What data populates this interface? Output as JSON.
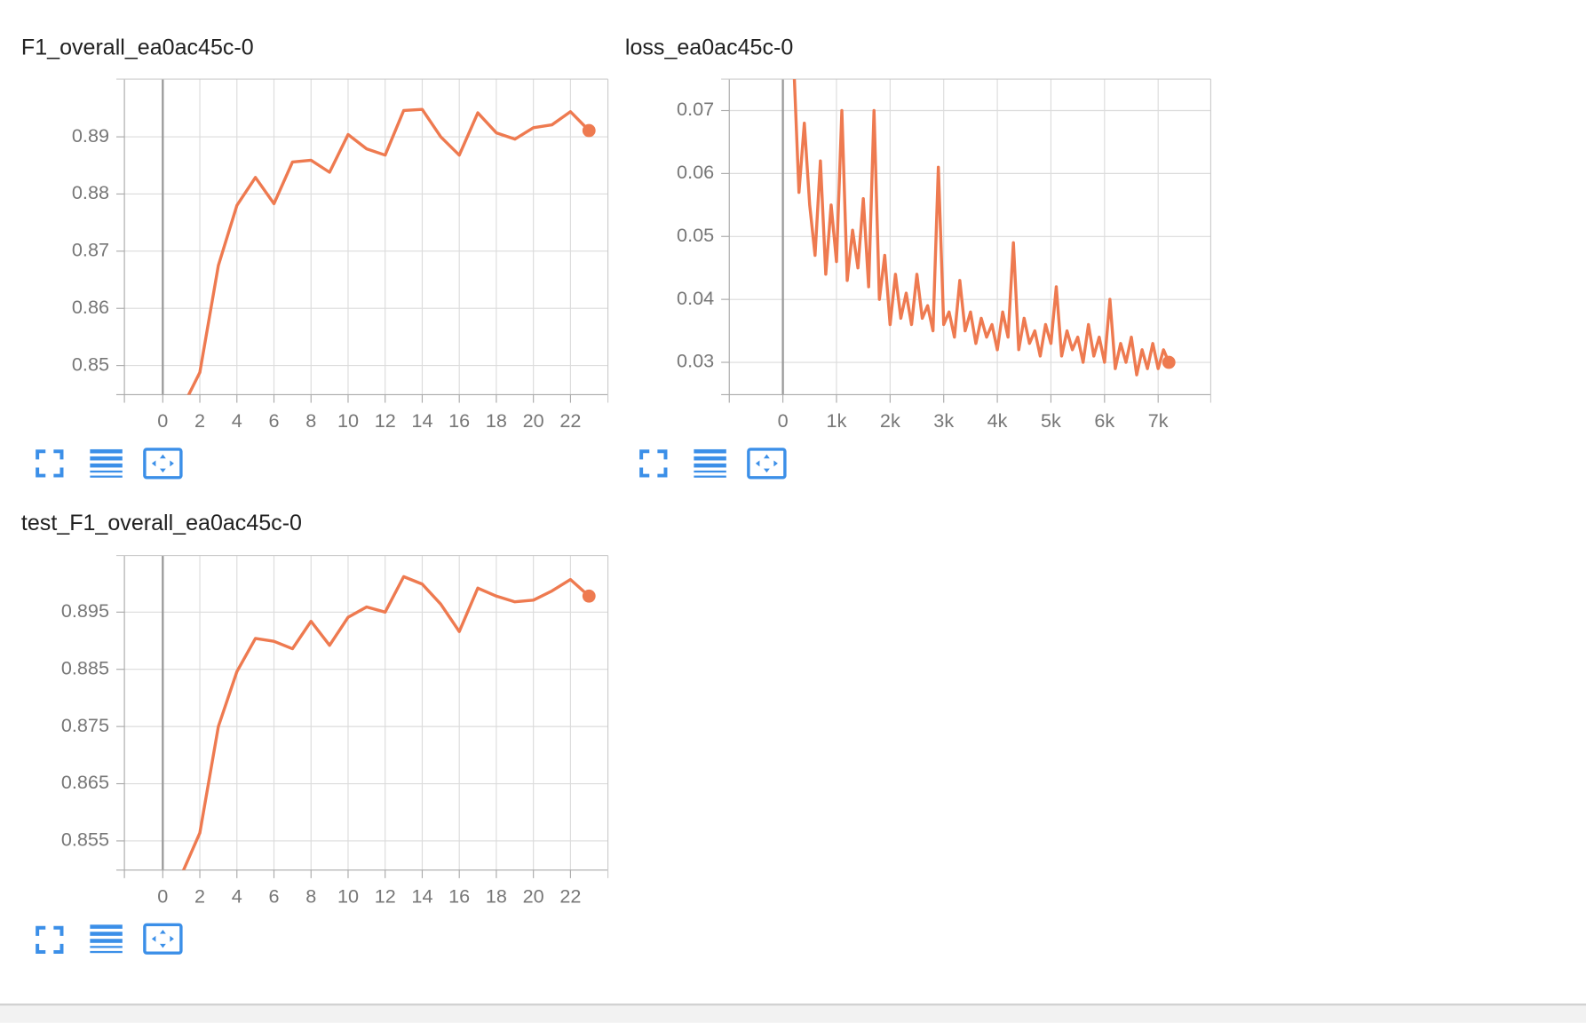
{
  "chart_data": [
    {
      "type": "line",
      "title": "F1_overall_ea0ac45c-0",
      "color": "#ee7a50",
      "grid": true,
      "x": [
        1,
        2,
        3,
        4,
        5,
        6,
        7,
        8,
        9,
        10,
        11,
        12,
        13,
        14,
        15,
        16,
        17,
        18,
        19,
        20,
        21,
        22,
        23
      ],
      "values": [
        0.8423,
        0.8488,
        0.8675,
        0.878,
        0.8829,
        0.8783,
        0.8856,
        0.8859,
        0.8838,
        0.8904,
        0.8879,
        0.8868,
        0.8946,
        0.8948,
        0.89,
        0.8868,
        0.8942,
        0.8907,
        0.8896,
        0.8916,
        0.8921,
        0.8944,
        0.8911
      ],
      "xlim": [
        -2.07,
        24.02
      ],
      "ylim": [
        0.8449,
        0.9001
      ],
      "xticks": [
        0,
        2,
        4,
        6,
        8,
        10,
        12,
        14,
        16,
        18,
        20,
        22
      ],
      "yticks": [
        0.85,
        0.86,
        0.87,
        0.88,
        0.89
      ]
    },
    {
      "type": "line",
      "title": "loss_ea0ac45c-0",
      "color": "#ee7a50",
      "grid": true,
      "x": [
        200,
        300,
        400,
        500,
        600,
        700,
        800,
        900,
        1000,
        1100,
        1200,
        1300,
        1400,
        1500,
        1600,
        1700,
        1800,
        1900,
        2000,
        2100,
        2200,
        2300,
        2400,
        2500,
        2600,
        2700,
        2800,
        2900,
        3000,
        3100,
        3200,
        3300,
        3400,
        3500,
        3600,
        3700,
        3800,
        3900,
        4000,
        4100,
        4200,
        4300,
        4400,
        4500,
        4600,
        4700,
        4800,
        4900,
        5000,
        5100,
        5200,
        5300,
        5400,
        5500,
        5600,
        5700,
        5800,
        5900,
        6000,
        6100,
        6200,
        6300,
        6400,
        6500,
        6600,
        6700,
        6800,
        6900,
        7000,
        7100,
        7200
      ],
      "values": [
        0.078,
        0.057,
        0.068,
        0.055,
        0.047,
        0.062,
        0.044,
        0.055,
        0.046,
        0.07,
        0.043,
        0.051,
        0.045,
        0.056,
        0.042,
        0.07,
        0.04,
        0.047,
        0.036,
        0.044,
        0.037,
        0.041,
        0.036,
        0.044,
        0.037,
        0.039,
        0.035,
        0.061,
        0.036,
        0.038,
        0.034,
        0.043,
        0.035,
        0.038,
        0.033,
        0.037,
        0.034,
        0.036,
        0.032,
        0.038,
        0.034,
        0.049,
        0.032,
        0.037,
        0.033,
        0.035,
        0.031,
        0.036,
        0.033,
        0.042,
        0.031,
        0.035,
        0.032,
        0.034,
        0.03,
        0.036,
        0.031,
        0.034,
        0.03,
        0.04,
        0.029,
        0.033,
        0.03,
        0.034,
        0.028,
        0.032,
        0.029,
        0.033,
        0.029,
        0.032,
        0.03
      ],
      "xlim": [
        -1000,
        7981
      ],
      "ylim": [
        0.02486,
        0.075
      ],
      "xticks": [
        0,
        {
          "value": 1000,
          "label": "1k"
        },
        {
          "value": 2000,
          "label": "2k"
        },
        {
          "value": 3000,
          "label": "3k"
        },
        {
          "value": 4000,
          "label": "4k"
        },
        {
          "value": 5000,
          "label": "5k"
        },
        {
          "value": 6000,
          "label": "6k"
        },
        {
          "value": 7000,
          "label": "7k"
        }
      ],
      "yticks": [
        0.03,
        0.04,
        0.05,
        0.06,
        0.07
      ]
    },
    {
      "type": "line",
      "title": "test_F1_overall_ea0ac45c-0",
      "color": "#ee7a50",
      "grid": true,
      "x": [
        1,
        2,
        3,
        4,
        5,
        6,
        7,
        8,
        9,
        10,
        11,
        12,
        13,
        14,
        15,
        16,
        17,
        18,
        19,
        20,
        21,
        22,
        23
      ],
      "values": [
        0.849,
        0.8564,
        0.875,
        0.8846,
        0.8904,
        0.8899,
        0.8886,
        0.8934,
        0.8892,
        0.8941,
        0.8959,
        0.895,
        0.9012,
        0.8999,
        0.8964,
        0.8916,
        0.8992,
        0.8978,
        0.8968,
        0.8971,
        0.8987,
        0.9007,
        0.8978
      ],
      "xlim": [
        -2.07,
        24.02
      ],
      "ylim": [
        0.8499,
        0.9049
      ],
      "xticks": [
        0,
        2,
        4,
        6,
        8,
        10,
        12,
        14,
        16,
        18,
        20,
        22
      ],
      "yticks": [
        0.855,
        0.865,
        0.875,
        0.885,
        0.895
      ]
    }
  ]
}
